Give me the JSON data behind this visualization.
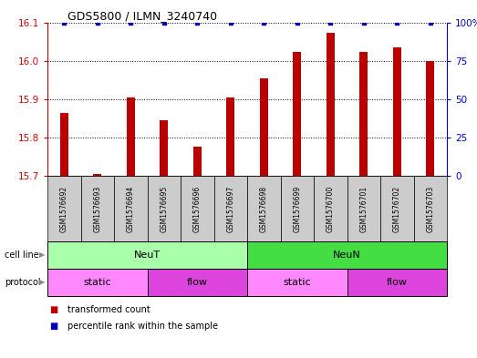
{
  "title": "GDS5800 / ILMN_3240740",
  "samples": [
    "GSM1576692",
    "GSM1576693",
    "GSM1576694",
    "GSM1576695",
    "GSM1576696",
    "GSM1576697",
    "GSM1576698",
    "GSM1576699",
    "GSM1576700",
    "GSM1576701",
    "GSM1576702",
    "GSM1576703"
  ],
  "transformed_counts": [
    15.865,
    15.705,
    15.905,
    15.845,
    15.775,
    15.905,
    15.955,
    16.025,
    16.075,
    16.025,
    16.035,
    16.0
  ],
  "percentile_dots_y": [
    100,
    100,
    100,
    100,
    100,
    100,
    100,
    100,
    100,
    100,
    100,
    100
  ],
  "ylim_left": [
    15.7,
    16.1
  ],
  "ylim_right": [
    0,
    100
  ],
  "yticks_left": [
    15.7,
    15.8,
    15.9,
    16.0,
    16.1
  ],
  "yticks_right": [
    0,
    25,
    50,
    75,
    100
  ],
  "bar_color": "#bb0000",
  "dot_color": "#0000bb",
  "bar_bottom": 15.7,
  "bar_width": 0.25,
  "cell_line_groups": [
    {
      "label": "NeuT",
      "start": 0,
      "end": 6,
      "color": "#aaffaa"
    },
    {
      "label": "NeuN",
      "start": 6,
      "end": 12,
      "color": "#44dd44"
    }
  ],
  "protocol_groups": [
    {
      "label": "static",
      "start": 0,
      "end": 3,
      "color": "#ff88ff"
    },
    {
      "label": "flow",
      "start": 3,
      "end": 6,
      "color": "#dd44dd"
    },
    {
      "label": "static",
      "start": 6,
      "end": 9,
      "color": "#ff88ff"
    },
    {
      "label": "flow",
      "start": 9,
      "end": 12,
      "color": "#dd44dd"
    }
  ],
  "legend_items": [
    {
      "label": "transformed count",
      "color": "#bb0000"
    },
    {
      "label": "percentile rank within the sample",
      "color": "#0000bb"
    }
  ],
  "background_color": "#ffffff",
  "tick_color_left": "#cc0000",
  "tick_color_right": "#0000cc",
  "sample_box_color": "#cccccc",
  "grid_style": "dotted"
}
